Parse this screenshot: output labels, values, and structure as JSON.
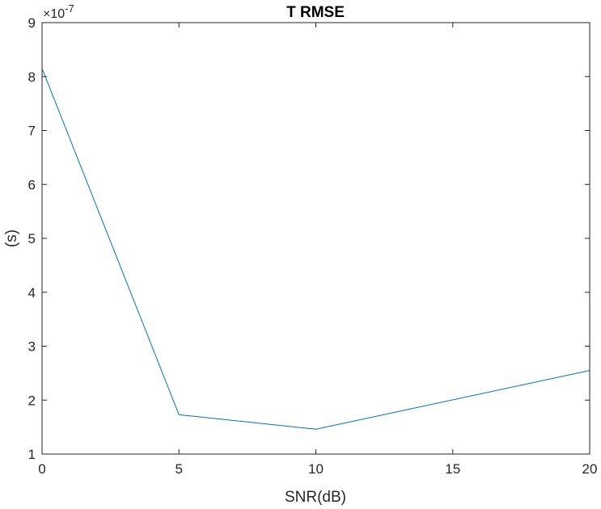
{
  "chart_data": {
    "type": "line",
    "title": "T RMSE",
    "xlabel": "SNR(dB)",
    "ylabel": "(s)",
    "y_multiplier_label": "×10",
    "y_multiplier_exponent": "-7",
    "xlim": [
      0,
      20
    ],
    "ylim": [
      1,
      9
    ],
    "x_ticks": [
      "0",
      "5",
      "10",
      "15",
      "20"
    ],
    "y_ticks": [
      "1",
      "2",
      "3",
      "4",
      "5",
      "6",
      "7",
      "8",
      "9"
    ],
    "grid": false,
    "series": [
      {
        "x": [
          0,
          5,
          10,
          20
        ],
        "values": [
          8.15,
          1.73,
          1.46,
          2.55
        ],
        "color": "#0072BD"
      }
    ]
  }
}
